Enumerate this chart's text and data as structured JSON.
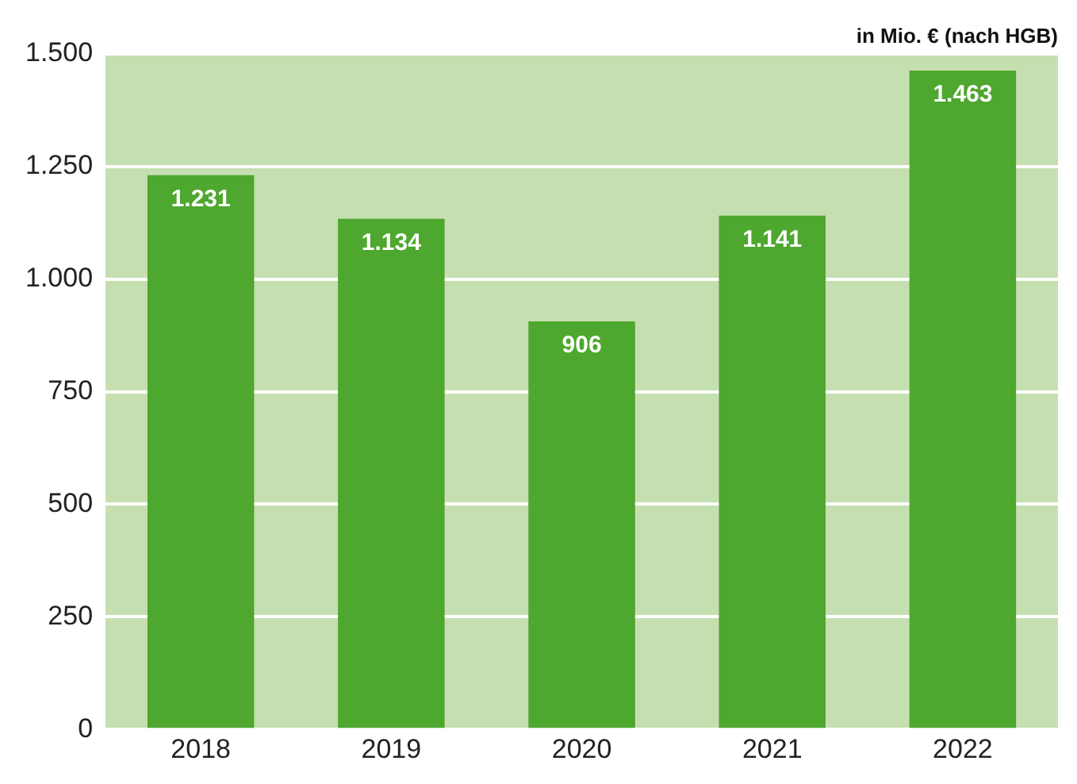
{
  "chart_data": {
    "type": "bar",
    "ylabel": "in Mio. € (nach HGB)",
    "categories": [
      "2018",
      "2019",
      "2020",
      "2021",
      "2022"
    ],
    "values": [
      1231,
      1134,
      906,
      1141,
      1463
    ],
    "color": "#4ea72e",
    "ylim": [
      0,
      1500
    ],
    "yticks": [
      0,
      {
        "value": 250,
        "label": "250"
      },
      {
        "value": 500,
        "label": "500"
      },
      {
        "value": 750,
        "label": "750"
      },
      {
        "value": 1000,
        "label": "1.000"
      },
      {
        "value": 1250,
        "label": "1.250"
      },
      {
        "value": 1500,
        "label": "1.500"
      }
    ],
    "value_labels": [
      "1.231",
      "1.134",
      "906",
      "1.141",
      "1.463"
    ],
    "grid": "y",
    "legend": false
  }
}
